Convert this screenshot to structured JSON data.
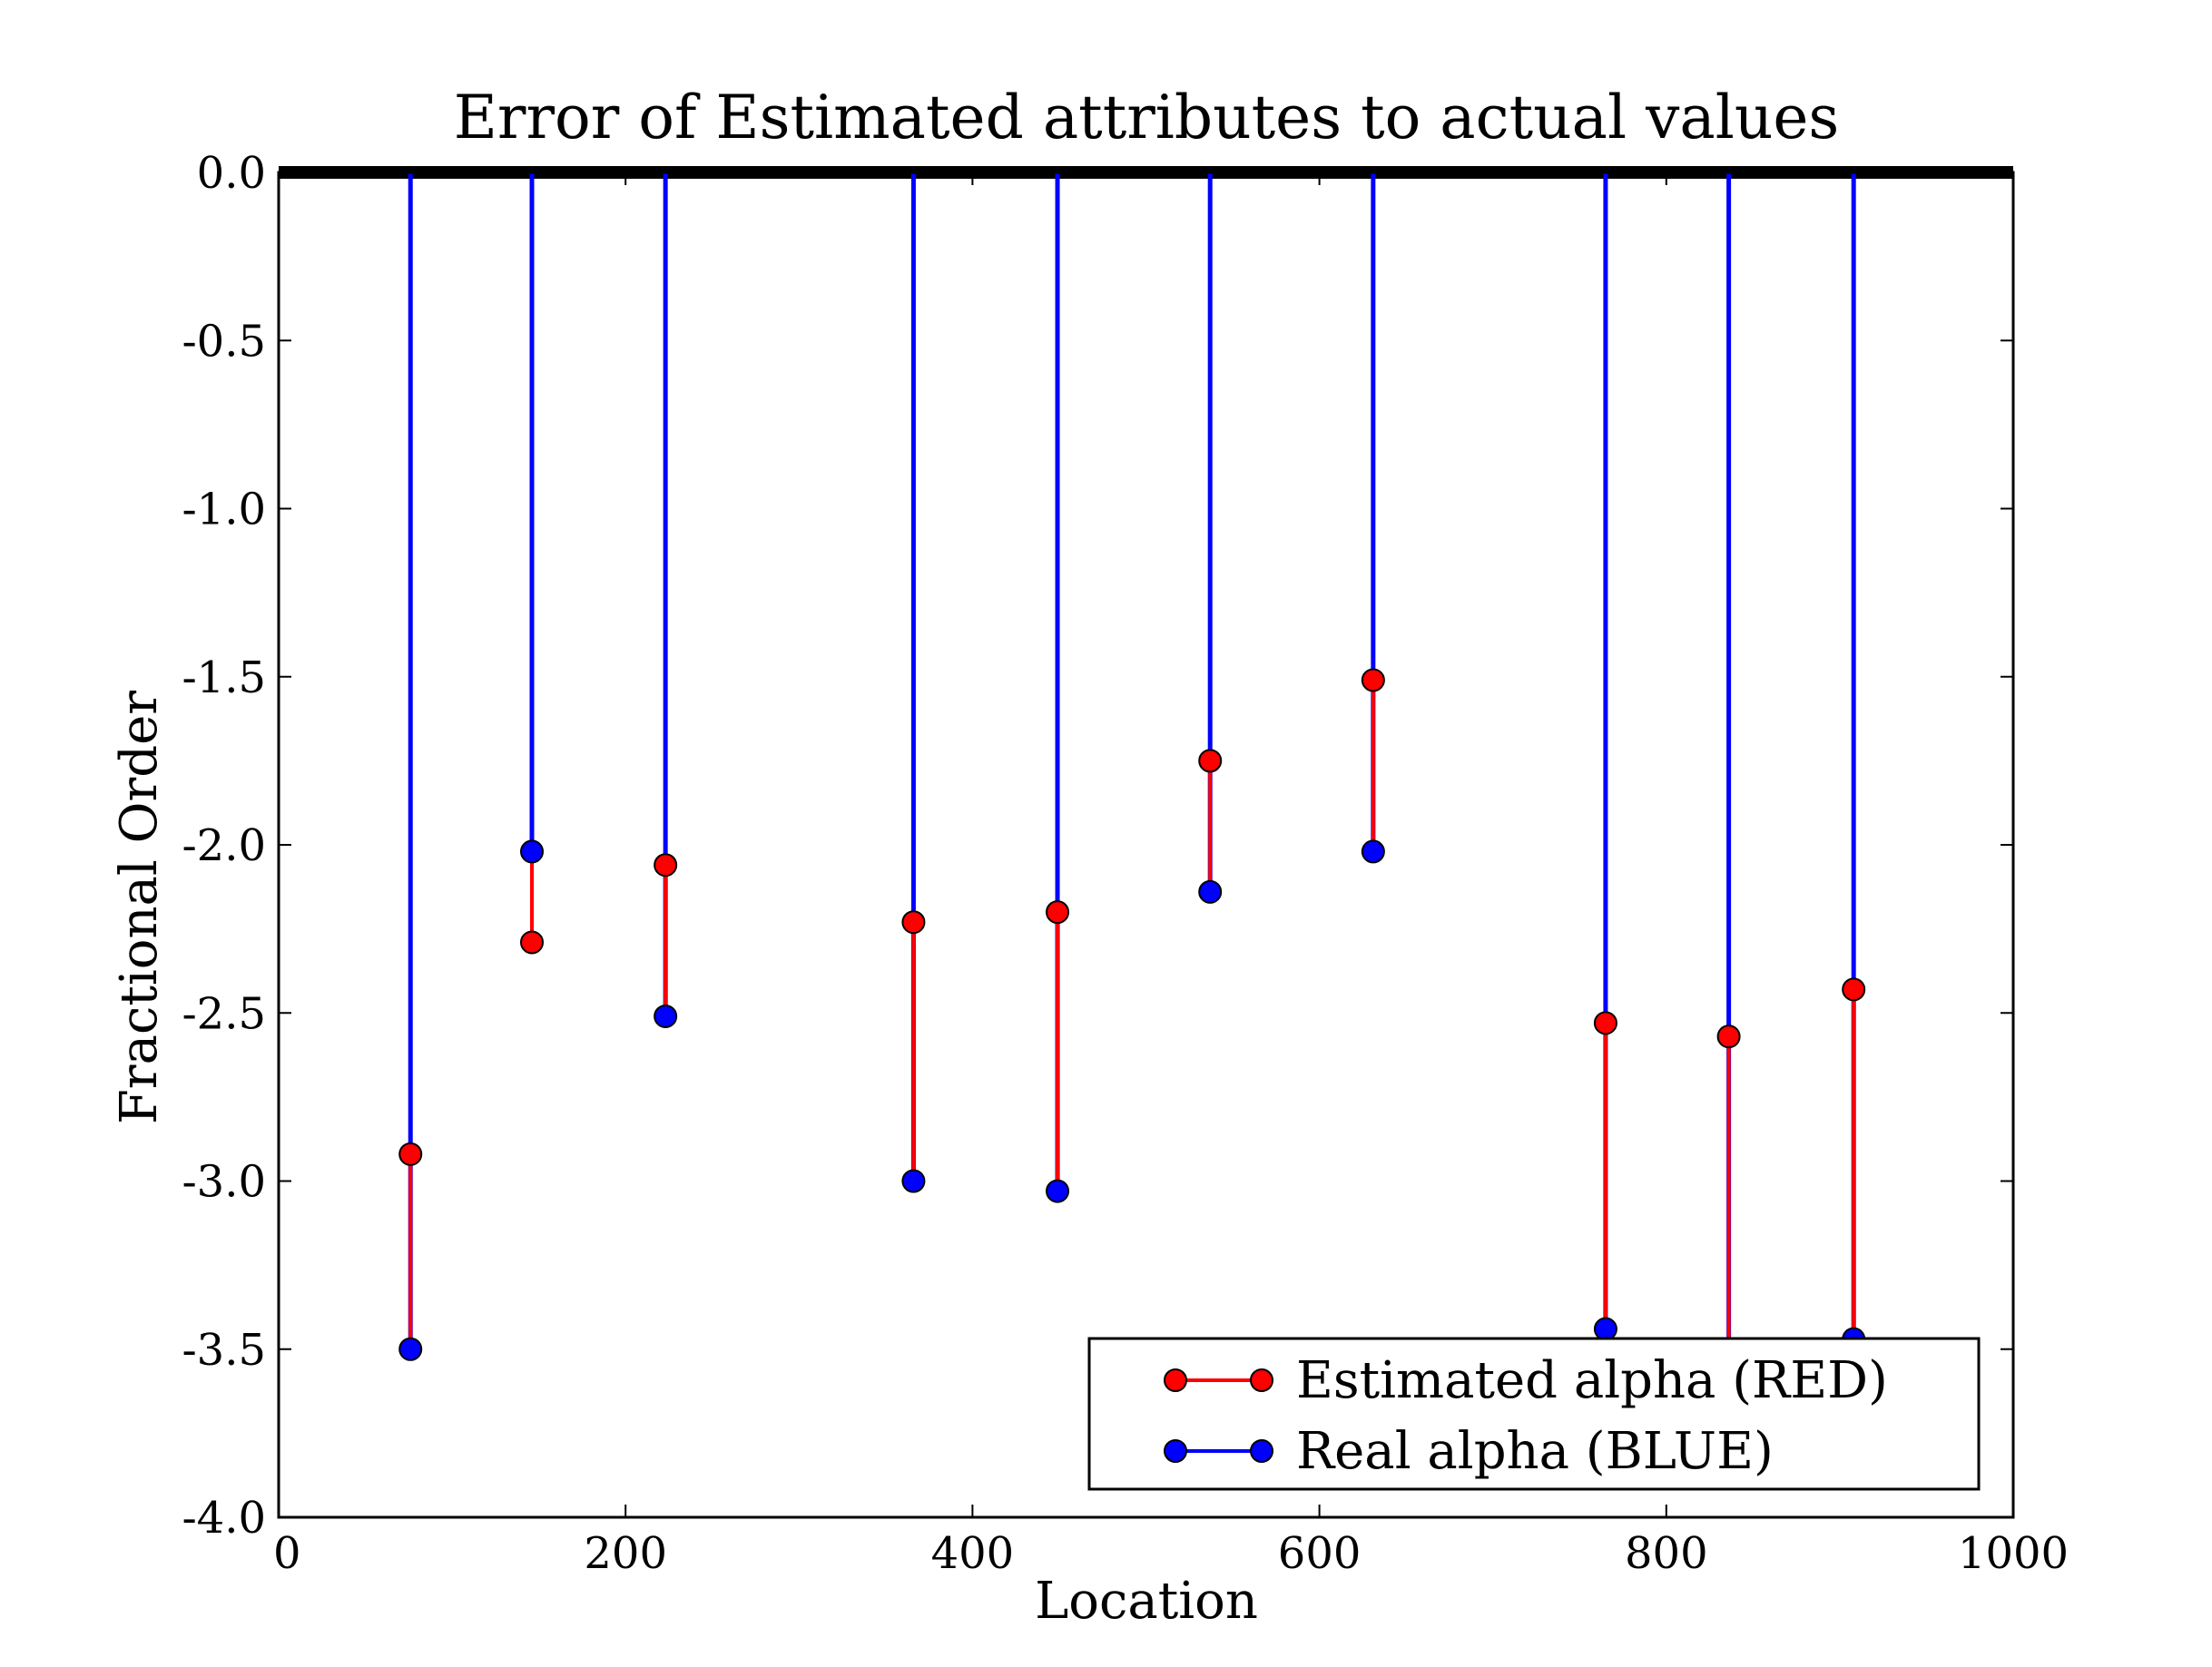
{
  "chart_data": {
    "type": "line",
    "title": "Error of Estimated attributes to actual values",
    "xlabel": "Location",
    "ylabel": "Fractional Order",
    "xlim": [
      0,
      1000
    ],
    "ylim": [
      -4.0,
      0.0
    ],
    "xticks": [
      0,
      200,
      400,
      600,
      800,
      1000
    ],
    "xtick_labels": [
      "0",
      "200",
      "400",
      "600",
      "800",
      "1000"
    ],
    "yticks": [
      0.0,
      -0.5,
      -1.0,
      -1.5,
      -2.0,
      -2.5,
      -3.0,
      -3.5,
      -4.0
    ],
    "ytick_labels": [
      "0.0",
      "-0.5",
      "-1.0",
      "-1.5",
      "-2.0",
      "-2.5",
      "-3.0",
      "-3.5",
      "-4.0"
    ],
    "grid": false,
    "legend_position": "lower-right",
    "series": [
      {
        "name": "Estimated alpha (RED)",
        "color": "#ff0000",
        "points": [
          {
            "x": 76,
            "y": -2.92
          },
          {
            "x": 146,
            "y": -2.29
          },
          {
            "x": 223,
            "y": -2.06
          },
          {
            "x": 366,
            "y": -2.23
          },
          {
            "x": 449,
            "y": -2.2
          },
          {
            "x": 537,
            "y": -1.75
          },
          {
            "x": 631,
            "y": -1.51
          },
          {
            "x": 765,
            "y": -2.53
          },
          {
            "x": 836,
            "y": -2.57
          },
          {
            "x": 908,
            "y": -2.43
          }
        ]
      },
      {
        "name": "Real alpha (BLUE)",
        "color": "#0000ff",
        "points": [
          {
            "x": 76,
            "y": -3.5
          },
          {
            "x": 146,
            "y": -2.02
          },
          {
            "x": 223,
            "y": -2.51
          },
          {
            "x": 366,
            "y": -3.0
          },
          {
            "x": 449,
            "y": -3.03
          },
          {
            "x": 537,
            "y": -2.14
          },
          {
            "x": 631,
            "y": -2.02
          },
          {
            "x": 765,
            "y": -3.44
          },
          {
            "x": 836,
            "y": -3.55
          },
          {
            "x": 908,
            "y": -3.47
          }
        ]
      }
    ]
  }
}
